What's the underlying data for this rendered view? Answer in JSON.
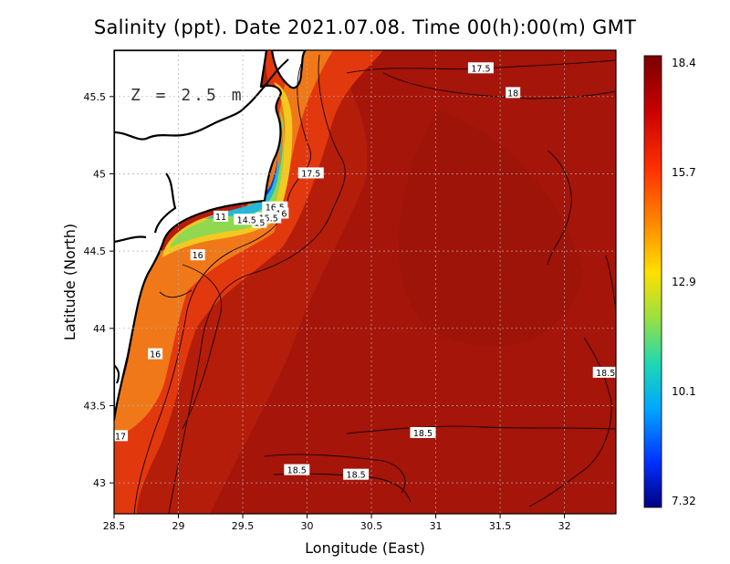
{
  "title": "Salinity (ppt). Date 2021.07.08. Time 00(h):00(m) GMT",
  "depth_label": "Z = 2.5 m",
  "x_axis": {
    "label": "Longitude (East)",
    "ticks": [
      "28.5",
      "29",
      "29.5",
      "30",
      "30.5",
      "31",
      "31.5",
      "32"
    ],
    "range": [
      28.5,
      32.4
    ]
  },
  "y_axis": {
    "label": "Latitude (North)",
    "ticks": [
      "43",
      "43.5",
      "44",
      "44.5",
      "45",
      "45.5"
    ],
    "range": [
      42.8,
      45.8
    ]
  },
  "colorbar": {
    "ticks": [
      "18.4",
      "15.7",
      "12.9",
      "10.1",
      "7.32"
    ],
    "min": 7.32,
    "max": 18.4
  },
  "contour_labels": [
    {
      "text": "17.5",
      "lon": 31.35,
      "lat": 45.68
    },
    {
      "text": "18",
      "lon": 31.6,
      "lat": 45.52
    },
    {
      "text": "17.5",
      "lon": 30.03,
      "lat": 45.0
    },
    {
      "text": "16.5",
      "lon": 29.75,
      "lat": 44.78
    },
    {
      "text": "16",
      "lon": 29.8,
      "lat": 44.74
    },
    {
      "text": "15.5",
      "lon": 29.7,
      "lat": 44.71
    },
    {
      "text": "15",
      "lon": 29.63,
      "lat": 44.68
    },
    {
      "text": "14.5",
      "lon": 29.53,
      "lat": 44.7
    },
    {
      "text": "11",
      "lon": 29.33,
      "lat": 44.72
    },
    {
      "text": "16",
      "lon": 29.15,
      "lat": 44.47
    },
    {
      "text": "16",
      "lon": 28.82,
      "lat": 43.83
    },
    {
      "text": "17",
      "lon": 28.55,
      "lat": 43.3
    },
    {
      "text": "18.5",
      "lon": 32.32,
      "lat": 43.71
    },
    {
      "text": "18.5",
      "lon": 30.9,
      "lat": 43.32
    },
    {
      "text": "18.5",
      "lon": 29.92,
      "lat": 43.08
    },
    {
      "text": "18.5",
      "lon": 30.38,
      "lat": 43.05
    }
  ],
  "colors": {
    "sea": "#b81f0c",
    "land": "#ffffff",
    "coast": "#000000",
    "grid": "#999999"
  }
}
